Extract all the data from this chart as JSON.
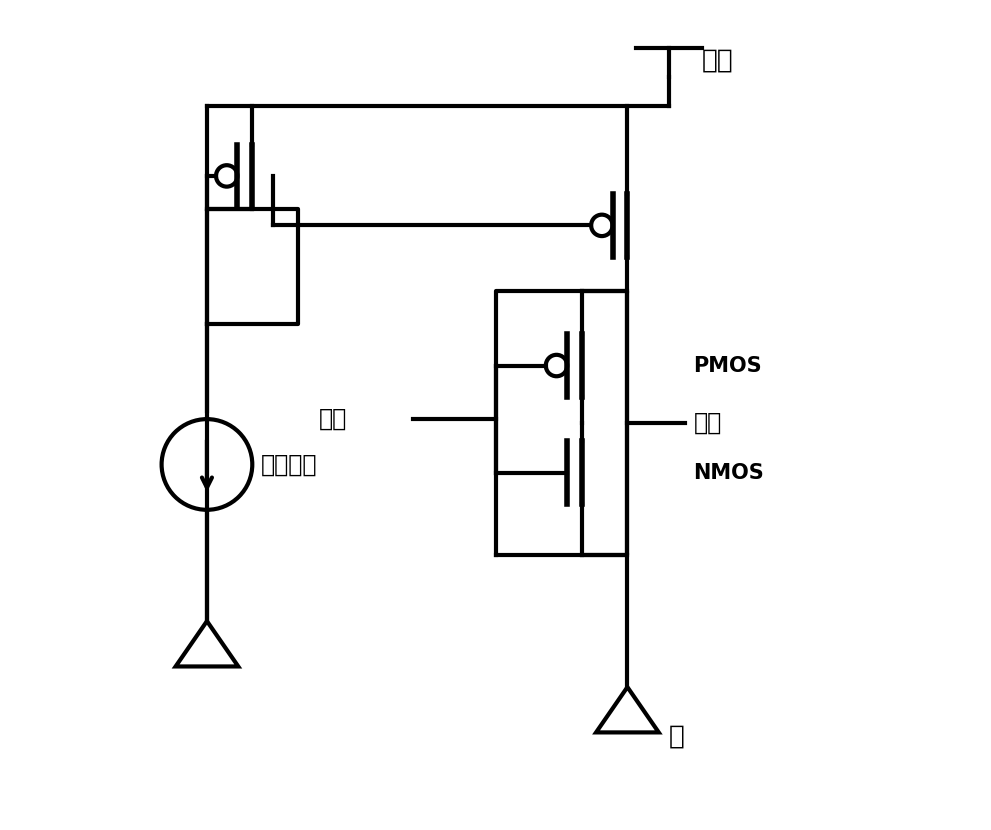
{
  "background_color": "#ffffff",
  "line_color": "#000000",
  "lw": 3.0,
  "fig_width": 9.91,
  "fig_height": 8.3,
  "labels": {
    "power": "电源",
    "ground": "地",
    "dc_current": "直流电流",
    "input": "输入",
    "output": "输出",
    "pmos": "PMOS",
    "nmos": "NMOS"
  }
}
